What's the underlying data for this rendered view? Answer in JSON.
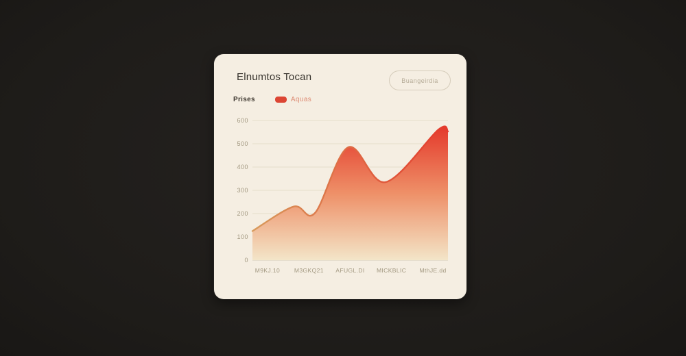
{
  "card": {
    "title": "Elnumtos Tocan",
    "button_label": "Buangeirdia",
    "legend": {
      "label": "Prises",
      "series_label": "Aquas",
      "swatch_color": "#dc4533"
    }
  },
  "chart_data": {
    "type": "area",
    "title": "Elnumtos Tocan",
    "xlabel": "",
    "ylabel": "",
    "ylim": [
      0,
      600
    ],
    "y_ticks": [
      600,
      500,
      400,
      300,
      200,
      100,
      0
    ],
    "y_tick_labels": [
      "600",
      "500",
      "400",
      "300",
      "200",
      "100",
      "0"
    ],
    "x_tick_labels": [
      "M9KJ.10",
      "M3GKQ21",
      "AFUGL.DI",
      "MICKBLIC",
      "MthJE.dd"
    ],
    "x_tick_positions": [
      0.077,
      0.289,
      0.5,
      0.711,
      0.923
    ],
    "grid": true,
    "legend_position": "top-left",
    "points": [
      {
        "x": 0.0,
        "y": 125
      },
      {
        "x": 0.21,
        "y": 230
      },
      {
        "x": 0.32,
        "y": 203
      },
      {
        "x": 0.49,
        "y": 485
      },
      {
        "x": 0.68,
        "y": 335
      },
      {
        "x": 0.95,
        "y": 560
      },
      {
        "x": 1.0,
        "y": 553
      }
    ],
    "colors": {
      "grid_line": "#e5ddcb",
      "baseline": "#d8cfba",
      "line_gradient_start": "#d89b5c",
      "line_gradient_end": "#e43a2c",
      "fill_top": "#e4392b",
      "fill_mid": "#ee9068",
      "fill_bottom": "#f3e5c8"
    }
  }
}
